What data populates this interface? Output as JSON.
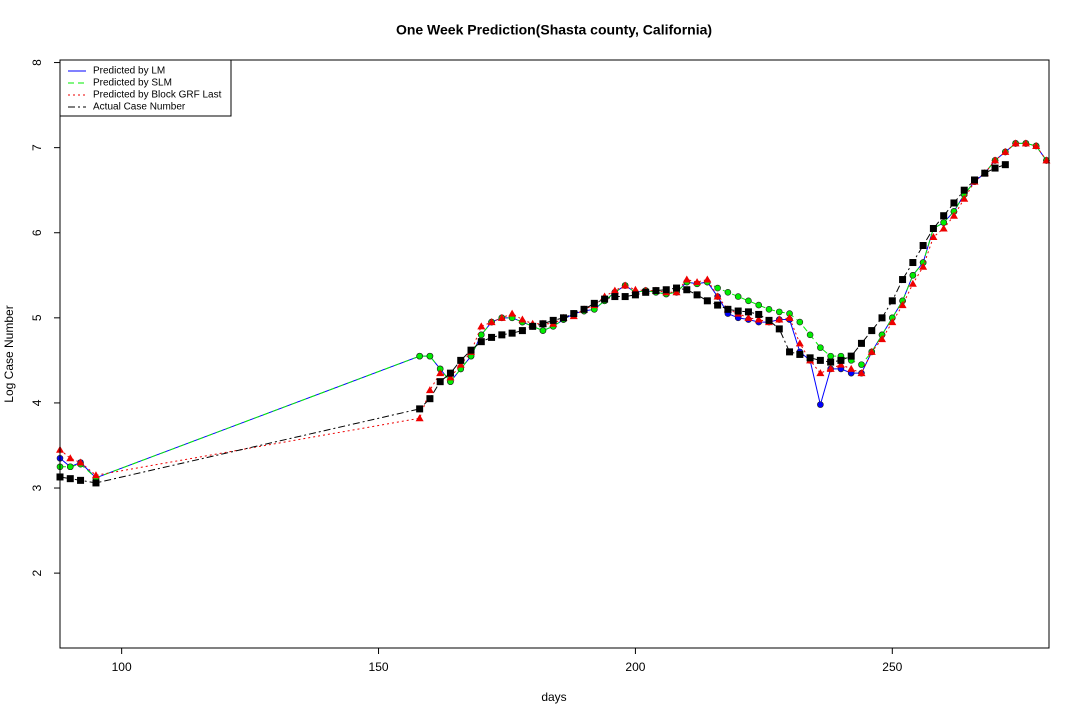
{
  "chart_data": {
    "type": "line",
    "title": "One Week Prediction(Shasta county, California)",
    "x_label": "days",
    "y_label": "Log Case Number",
    "xlim": [
      88,
      280.5
    ],
    "ylim": [
      1.12,
      8.03
    ],
    "xticks": [
      100,
      150,
      200,
      250
    ],
    "yticks": [
      2,
      3,
      4,
      5,
      6,
      7,
      8
    ],
    "legend": "top-left",
    "x": [
      88,
      90,
      92,
      95,
      158,
      160,
      162,
      164,
      166,
      168,
      170,
      172,
      174,
      176,
      178,
      180,
      182,
      184,
      186,
      188,
      190,
      192,
      194,
      196,
      198,
      200,
      202,
      204,
      206,
      208,
      210,
      212,
      214,
      216,
      218,
      220,
      222,
      224,
      226,
      228,
      230,
      232,
      234,
      236,
      238,
      240,
      242,
      244,
      246,
      248,
      250,
      252,
      254,
      256,
      258,
      260,
      262,
      264,
      266,
      268,
      270,
      272,
      274,
      276,
      278,
      280
    ],
    "series": [
      {
        "name": "Predicted by LM",
        "color": "#0000ff",
        "dash": "solid",
        "marker": "circle",
        "values": [
          3.35,
          3.25,
          3.3,
          3.12,
          4.55,
          4.55,
          4.4,
          4.25,
          4.4,
          4.55,
          4.8,
          4.95,
          5.0,
          5.0,
          4.95,
          4.9,
          4.85,
          4.9,
          4.98,
          5.05,
          5.08,
          5.1,
          5.2,
          5.3,
          5.38,
          5.3,
          5.32,
          5.3,
          5.28,
          5.3,
          5.42,
          5.4,
          5.42,
          5.25,
          5.05,
          5.0,
          4.98,
          4.95,
          4.95,
          4.98,
          4.98,
          4.6,
          4.5,
          3.98,
          4.4,
          4.4,
          4.35,
          4.35,
          4.6,
          4.8,
          5.0,
          5.2,
          5.5,
          5.65,
          6.05,
          6.12,
          6.25,
          6.45,
          6.6,
          6.7,
          6.85,
          6.95,
          7.05,
          7.05,
          7.02,
          6.85
        ]
      },
      {
        "name": "Predicted by SLM",
        "color": "#00ee00",
        "dash": "dashed",
        "marker": "circle",
        "values": [
          3.25,
          3.25,
          3.28,
          3.12,
          4.55,
          4.55,
          4.4,
          4.25,
          4.4,
          4.55,
          4.8,
          4.95,
          5.0,
          5.0,
          4.95,
          4.9,
          4.85,
          4.9,
          4.98,
          5.05,
          5.08,
          5.1,
          5.2,
          5.3,
          5.38,
          5.3,
          5.32,
          5.3,
          5.28,
          5.3,
          5.42,
          5.4,
          5.42,
          5.35,
          5.3,
          5.25,
          5.2,
          5.15,
          5.1,
          5.07,
          5.05,
          4.95,
          4.8,
          4.65,
          4.55,
          4.55,
          4.5,
          4.45,
          4.6,
          4.8,
          5.0,
          5.2,
          5.5,
          5.65,
          6.05,
          6.12,
          6.25,
          6.45,
          6.6,
          6.7,
          6.85,
          6.95,
          7.05,
          7.05,
          7.02,
          6.85
        ]
      },
      {
        "name": "Predicted by Block GRF Last",
        "color": "#ee0000",
        "dash": "dotted",
        "marker": "triangle",
        "values": [
          3.45,
          3.35,
          3.3,
          3.15,
          3.82,
          4.15,
          4.35,
          4.3,
          4.45,
          4.6,
          4.9,
          4.95,
          5.0,
          5.05,
          4.98,
          4.93,
          4.93,
          4.93,
          5.0,
          5.02,
          5.1,
          5.15,
          5.25,
          5.32,
          5.38,
          5.33,
          5.32,
          5.32,
          5.3,
          5.3,
          5.45,
          5.42,
          5.45,
          5.25,
          5.1,
          5.05,
          5.0,
          4.98,
          4.95,
          4.98,
          5.0,
          4.7,
          4.5,
          4.35,
          4.4,
          4.45,
          4.4,
          4.35,
          4.6,
          4.75,
          4.95,
          5.15,
          5.4,
          5.6,
          5.95,
          6.05,
          6.2,
          6.4,
          6.6,
          6.7,
          6.85,
          6.95,
          7.05,
          7.05,
          7.02,
          6.85
        ]
      },
      {
        "name": "Actual Case Number",
        "color": "#000000",
        "dash": "dashdot",
        "marker": "square",
        "values": [
          3.13,
          3.11,
          3.09,
          3.06,
          3.93,
          4.05,
          4.25,
          4.35,
          4.5,
          4.62,
          4.72,
          4.77,
          4.8,
          4.82,
          4.85,
          4.9,
          4.93,
          4.97,
          5.0,
          5.05,
          5.1,
          5.17,
          5.22,
          5.25,
          5.25,
          5.27,
          5.3,
          5.32,
          5.33,
          5.35,
          5.33,
          5.27,
          5.2,
          5.15,
          5.1,
          5.08,
          5.07,
          5.04,
          4.97,
          4.87,
          4.6,
          4.57,
          4.53,
          4.5,
          4.48,
          4.5,
          4.55,
          4.7,
          4.85,
          5.0,
          5.2,
          5.45,
          5.65,
          5.85,
          6.05,
          6.2,
          6.35,
          6.5,
          6.62,
          6.7,
          6.76,
          6.8,
          null,
          null,
          null,
          null
        ]
      }
    ]
  }
}
